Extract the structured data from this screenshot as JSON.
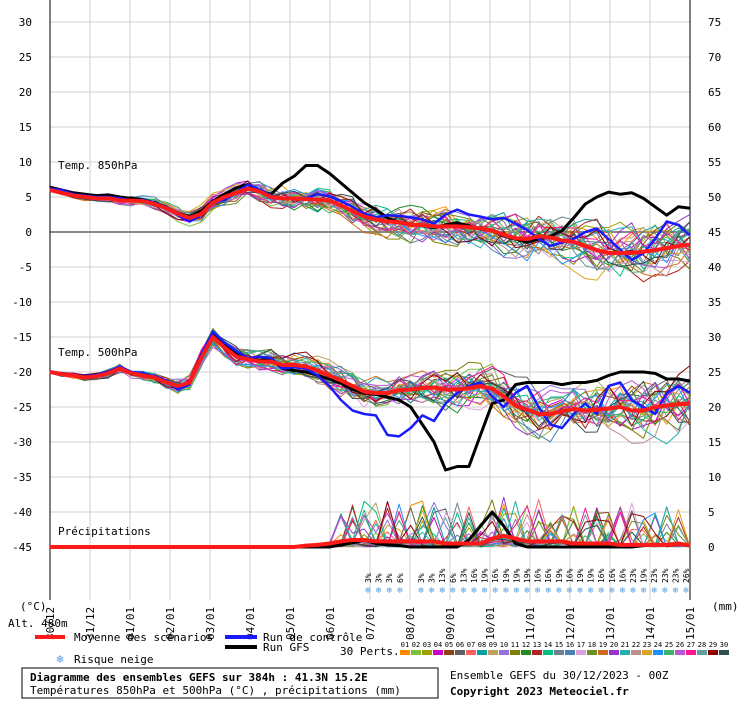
{
  "chart_data": {
    "type": "line",
    "title": "Diagramme des ensembles GEFS sur 384h : 41.3N 15.2E",
    "subtitle": "Températures 850hPa et 500hPa (°C) , précipitations (mm)",
    "run_info": "Ensemble GEFS du 30/12/2023 - 00Z",
    "copyright": "Copyright 2023 Meteociel.fr",
    "altitude_label": "Alt. 480m",
    "left_unit": "(°C)",
    "right_unit": "(mm)",
    "panel_labels": {
      "t850": "Temp. 850hPa",
      "t500": "Temp. 500hPa",
      "precip": "Précipitations"
    },
    "x_ticks": [
      "30/12",
      "31/12",
      "01/01",
      "02/01",
      "03/01",
      "04/01",
      "05/01",
      "06/01",
      "07/01",
      "08/01",
      "09/01",
      "10/01",
      "11/01",
      "12/01",
      "13/01",
      "14/01",
      "15/01"
    ],
    "left_axis": {
      "ticks": [
        30,
        25,
        20,
        15,
        10,
        5,
        0,
        -5,
        -10,
        -15,
        -20,
        -25,
        -30,
        -35,
        -40,
        -45
      ],
      "range": [
        -45,
        30
      ]
    },
    "right_axis": {
      "ticks": [
        75,
        70,
        65,
        60,
        55,
        50,
        45,
        40,
        35,
        30,
        25,
        20,
        15,
        10,
        5,
        0
      ],
      "range": [
        0,
        75
      ]
    },
    "legend": {
      "mean": "Moyenne des scénarios",
      "control": "Run de contrôle",
      "gfs": "Run GFS",
      "snow": "Risque neige",
      "perts": "30 Perts."
    },
    "perturbation_ids": [
      "01",
      "02",
      "03",
      "04",
      "05",
      "06",
      "07",
      "08",
      "09",
      "10",
      "11",
      "12",
      "13",
      "14",
      "15",
      "16",
      "17",
      "18",
      "19",
      "20",
      "21",
      "22",
      "23",
      "24",
      "25",
      "26",
      "27",
      "28",
      "29",
      "30"
    ],
    "perturbation_colors": [
      "#ff8c00",
      "#7fbf3f",
      "#a0a000",
      "#cc00cc",
      "#8b4513",
      "#606060",
      "#ff6060",
      "#00a0a0",
      "#c0a060",
      "#9370db",
      "#808000",
      "#228b22",
      "#b22222",
      "#00c080",
      "#708090",
      "#4682b4",
      "#dda0dd",
      "#6b8e23",
      "#d2691e",
      "#9932cc",
      "#20b2aa",
      "#bc8f8f",
      "#daa520",
      "#1e90ff",
      "#3cb371",
      "#ba55d3",
      "#ff1493",
      "#5f9ea0",
      "#8b0000",
      "#2f4f4f"
    ],
    "snow_risk_labels": [
      "3%",
      "3%",
      "3%",
      "6%",
      "3%",
      "3%",
      "3%",
      "13%",
      "6%",
      "13%",
      "16%",
      "19%",
      "16%",
      "19%",
      "19%",
      "19%",
      "16%",
      "16%",
      "19%",
      "16%",
      "19%",
      "19%",
      "16%",
      "16%",
      "16%",
      "23%",
      "19%",
      "23%",
      "23%",
      "23%",
      "26%"
    ],
    "series": [
      {
        "name": "Moyenne des scénarios",
        "role": "mean",
        "t850": [
          6,
          5.6,
          5.2,
          5,
          4.8,
          4.8,
          4.5,
          4.5,
          4.4,
          4,
          3.4,
          2.6,
          2,
          2.6,
          4.2,
          5,
          5.6,
          6.2,
          5.8,
          5,
          4.8,
          4.8,
          4.7,
          4.6,
          4.5,
          3.8,
          3,
          2.2,
          1.8,
          1.5,
          1.4,
          1,
          1,
          0.8,
          0.8,
          0.8,
          0.7,
          0.5,
          0.2,
          -0.4,
          -0.9,
          -1,
          -0.6,
          -0.8,
          -1.2,
          -1.4,
          -2,
          -2.6,
          -3,
          -3,
          -3,
          -2.8,
          -2.6,
          -2.3,
          -2,
          -1.8
        ],
        "t500": [
          -20,
          -20.3,
          -20.5,
          -20.8,
          -20.6,
          -20.2,
          -19.5,
          -20.2,
          -20.5,
          -20.8,
          -21.5,
          -22,
          -21.5,
          -18,
          -15,
          -16.5,
          -17.8,
          -18.2,
          -18.5,
          -18.5,
          -19,
          -19,
          -19.2,
          -19.8,
          -20.5,
          -21.2,
          -22,
          -22.8,
          -23,
          -23,
          -22.6,
          -22.5,
          -22.3,
          -22.2,
          -22.5,
          -22.5,
          -22.3,
          -22,
          -22.4,
          -23.5,
          -24.8,
          -25.4,
          -26,
          -26,
          -25.6,
          -25.3,
          -25.5,
          -25.4,
          -25.2,
          -25,
          -25.5,
          -25.5,
          -25,
          -24.8,
          -24.6,
          -24.5
        ],
        "precip": [
          0,
          0,
          0,
          0,
          0,
          0,
          0,
          0,
          0,
          0,
          0,
          0,
          0,
          0,
          0,
          0,
          0,
          0,
          0,
          0,
          0,
          0,
          0.2,
          0.3,
          0.5,
          0.8,
          1,
          1,
          0.8,
          0.8,
          0.8,
          0.8,
          0.8,
          0.8,
          0.5,
          0.5,
          0.5,
          0.5,
          1.2,
          1.6,
          1.2,
          0.8,
          0.8,
          0.8,
          0.8,
          0.5,
          0.5,
          0.5,
          0.5,
          0.3,
          0.3,
          0.3,
          0.3,
          0.3,
          0.5,
          0.2
        ]
      },
      {
        "name": "Run de contrôle",
        "role": "control",
        "t850": [
          6.2,
          6,
          5.4,
          5.2,
          5,
          5,
          4.8,
          4.5,
          4.6,
          4.2,
          3.5,
          2.4,
          1.5,
          2.4,
          4.2,
          4.6,
          5.6,
          6.8,
          6.1,
          5.2,
          4.8,
          4.8,
          4.8,
          5.4,
          5.1,
          4.4,
          3.6,
          2.6,
          2.1,
          2.4,
          2.3,
          2.1,
          1.8,
          1.2,
          2.5,
          3.2,
          2.5,
          2.2,
          1.8,
          2,
          1.2,
          0.3,
          -1,
          -2,
          -1.5,
          -1,
          0,
          0.5,
          -1,
          -2.5,
          -4,
          -3,
          -1,
          1.5,
          1,
          -0.5
        ],
        "t500": [
          -20,
          -20.2,
          -20.4,
          -20.6,
          -20.4,
          -20,
          -19.2,
          -20,
          -20.2,
          -20.6,
          -21.2,
          -22.5,
          -21.8,
          -17.5,
          -14.2,
          -15.8,
          -17,
          -18,
          -17.8,
          -18,
          -19.5,
          -19.3,
          -19.5,
          -20.5,
          -22,
          -24,
          -25.5,
          -26,
          -26.2,
          -29,
          -29.2,
          -28,
          -26.2,
          -27,
          -24.5,
          -23,
          -22,
          -21.5,
          -23.5,
          -25,
          -23,
          -22,
          -25,
          -27.5,
          -28,
          -26,
          -24.5,
          -26,
          -22,
          -21.5,
          -24,
          -25,
          -26,
          -23,
          -22,
          -23
        ]
      },
      {
        "name": "Run GFS",
        "role": "gfs",
        "t850": [
          6.4,
          6,
          5.6,
          5.4,
          5.2,
          5.3,
          5,
          4.8,
          4.6,
          4.2,
          3.5,
          2.7,
          2.2,
          3,
          4.4,
          5.4,
          6.3,
          6.8,
          5.8,
          5.4,
          7,
          8,
          9.5,
          9.5,
          8.4,
          7,
          5.6,
          4.2,
          3.2,
          2,
          1.4,
          1.1,
          0.9,
          0.6,
          1,
          1.3,
          0.9,
          0.4,
          0.2,
          -0.6,
          -1,
          -1.5,
          -1,
          -0.6,
          0.2,
          2,
          4,
          5,
          5.7,
          5.4,
          5.6,
          4.8,
          3.6,
          2.4,
          3.6,
          3.4
        ],
        "t500": [
          -20,
          -20.2,
          -20.4,
          -20.6,
          -20.4,
          -20,
          -19.3,
          -20.1,
          -20.4,
          -20.8,
          -21.4,
          -22.3,
          -21.6,
          -17.8,
          -14.8,
          -16,
          -17.2,
          -18.1,
          -18.3,
          -18.2,
          -19.5,
          -19.8,
          -20,
          -20.5,
          -21,
          -21.6,
          -22.5,
          -23,
          -23.2,
          -23.6,
          -24,
          -25,
          -27.5,
          -30,
          -34,
          -33.5,
          -33.5,
          -29,
          -24.5,
          -24,
          -21.8,
          -21.5,
          -21.5,
          -21.5,
          -21.8,
          -21.5,
          -21.5,
          -21.2,
          -20.5,
          -20,
          -20,
          -20,
          -20.2,
          -21,
          -21,
          -21.3
        ],
        "precip": [
          0,
          0,
          0,
          0,
          0,
          0,
          0,
          0,
          0,
          0,
          0,
          0,
          0,
          0,
          0,
          0,
          0,
          0,
          0,
          0,
          0,
          0,
          0,
          0,
          0,
          0.3,
          0.6,
          1,
          0.5,
          0.3,
          0.2,
          0,
          0,
          0,
          0,
          0,
          1,
          3,
          5,
          3,
          0.5,
          0,
          0,
          0,
          0,
          0,
          0,
          0,
          0,
          0,
          0,
          0.2,
          0.4,
          0.3,
          0.5,
          0.2
        ]
      }
    ]
  }
}
